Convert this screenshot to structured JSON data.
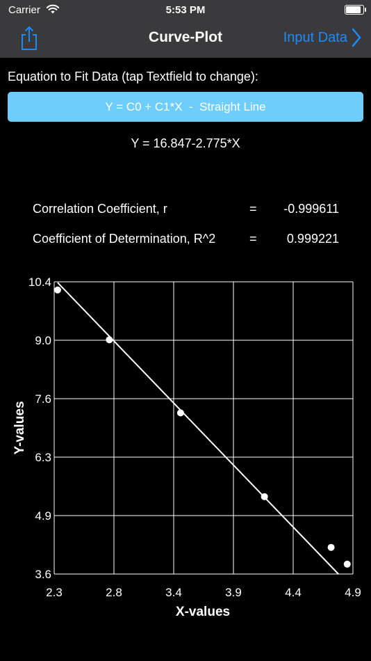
{
  "status_bar": {
    "carrier": "Carrier",
    "time": "5:53 PM",
    "battery_level": 1.0
  },
  "nav": {
    "title": "Curve-Plot",
    "right_button": "Input Data"
  },
  "equation": {
    "label": "Equation to Fit Data (tap Textfield to change):",
    "field_value": "Y = C0 + C1*X  -  Straight Line",
    "result": "Y = 16.847-2.775*X"
  },
  "stats": [
    {
      "label": "Correlation Coefficient, r",
      "eq": "=",
      "value": "-0.999611"
    },
    {
      "label": "Coefficient of Determination, R^2",
      "eq": "=",
      "value": "0.999221"
    }
  ],
  "chart_data": {
    "type": "scatter",
    "xlabel": "X-values",
    "ylabel": "Y-values",
    "xlim": [
      2.3,
      4.9
    ],
    "ylim": [
      3.6,
      10.4
    ],
    "x_ticks": [
      "2.3",
      "2.8",
      "3.4",
      "3.9",
      "4.4",
      "4.9"
    ],
    "y_ticks": [
      "10.4",
      "9.0",
      "7.6",
      "6.3",
      "4.9",
      "3.6"
    ],
    "grid": true,
    "points": [
      {
        "x": 2.33,
        "y": 10.21
      },
      {
        "x": 2.78,
        "y": 9.05
      },
      {
        "x": 3.4,
        "y": 7.35
      },
      {
        "x": 4.13,
        "y": 5.4
      },
      {
        "x": 4.71,
        "y": 4.22
      },
      {
        "x": 4.85,
        "y": 3.83
      }
    ],
    "fit_line": {
      "intercept": 16.847,
      "slope": -2.775
    }
  }
}
